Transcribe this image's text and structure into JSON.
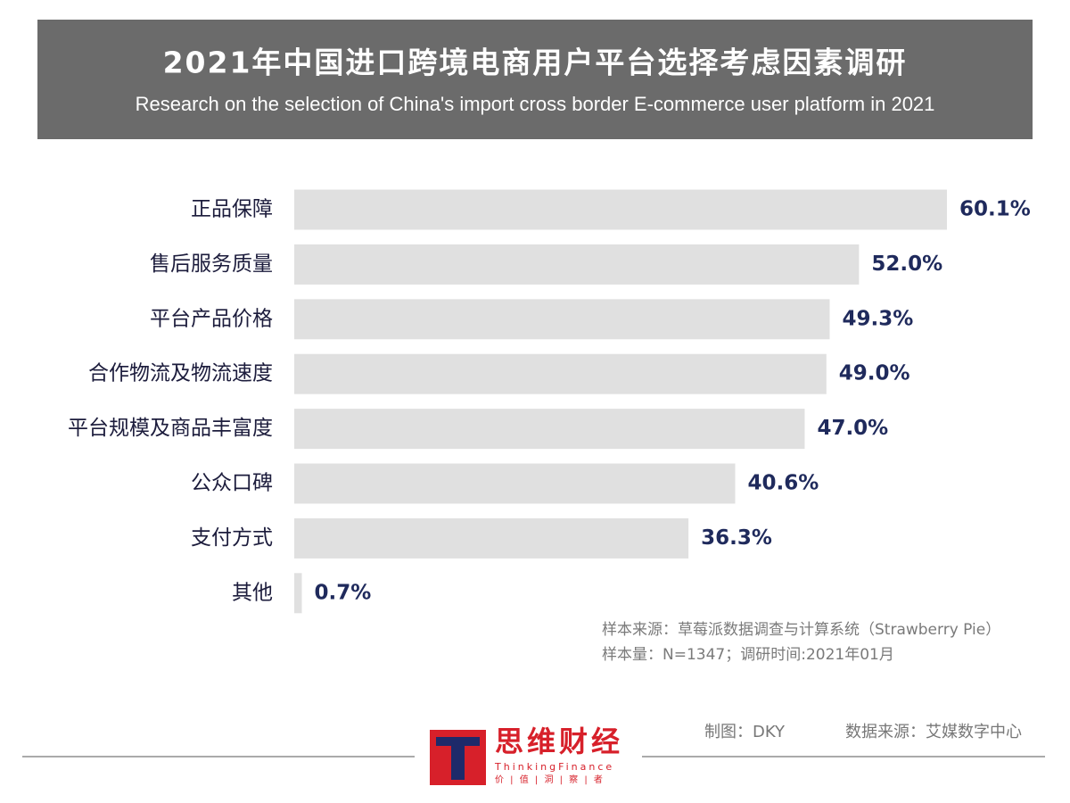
{
  "chart_data": {
    "type": "hbar",
    "title": "2021年中国进口跨境电商用户平台选择考虑因素调研",
    "subtitle": "Research on the selection of China's import cross border E-commerce user platform in 2021",
    "categories": [
      "正品保障",
      "售后服务质量",
      "平台产品价格",
      "合作物流及物流速度",
      "平台规模及商品丰富度",
      "公众口碑",
      "支付方式",
      "其他"
    ],
    "values": [
      60.1,
      52.0,
      49.3,
      49.0,
      47.0,
      40.6,
      36.3,
      0.7
    ],
    "value_labels": [
      "60.1%",
      "52.0%",
      "49.3%",
      "49.0%",
      "47.0%",
      "40.6%",
      "36.3%",
      "0.7%"
    ],
    "color": "#e0e0e0",
    "notes": [
      "样本来源：草莓派数据调查与计算系统（Strawberry Pie）",
      "样本量：N=1347；调研时间:2021年01月"
    ]
  },
  "footer": {
    "brand": "思维财经",
    "brand_en": "ThinkingFinance",
    "slogan": "价 | 值 | 洞 | 察 | 者",
    "author": "制图：DKY",
    "source": "数据来源：艾媒数字中心"
  }
}
